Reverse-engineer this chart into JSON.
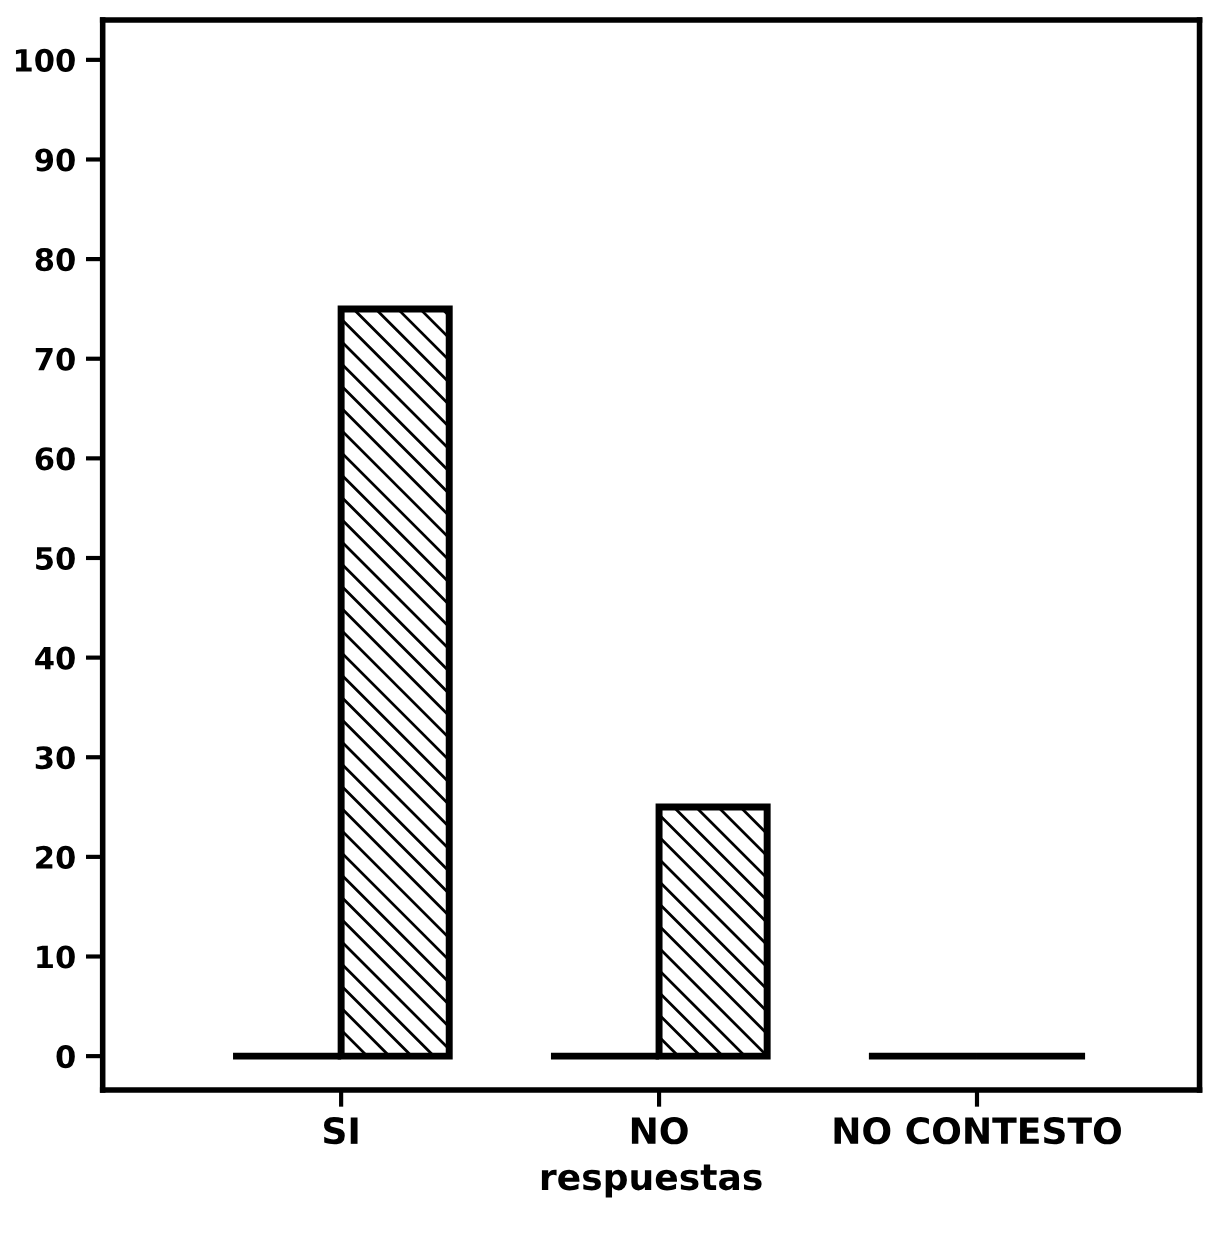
{
  "chart_data": {
    "type": "bar",
    "xlabel": "respuestas",
    "categories": [
      "SI",
      "NO",
      "NO CONTESTO"
    ],
    "series": [
      {
        "color": "#000000",
        "values": [
          0,
          0,
          0
        ]
      },
      {
        "color": "#000000",
        "values": [
          75,
          25,
          0
        ]
      }
    ],
    "ylim": [
      -3.4,
      104
    ],
    "yticks": [
      0,
      10,
      20,
      30,
      40,
      50,
      60,
      70,
      80,
      90,
      100
    ],
    "grid": false,
    "legend": false
  }
}
